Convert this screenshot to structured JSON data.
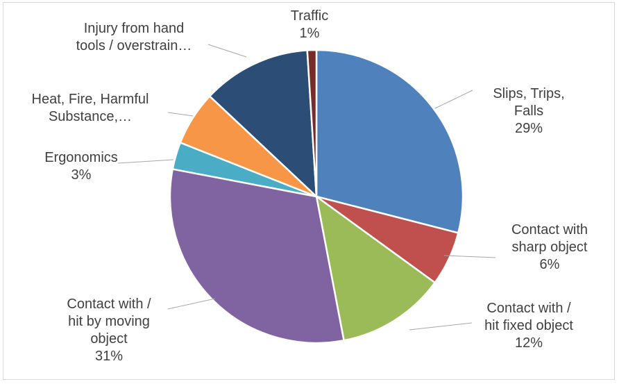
{
  "chart_data": {
    "type": "pie",
    "title": "",
    "slices": [
      {
        "label_lines": [
          "Slips, Trips,",
          "Falls"
        ],
        "percent_label": "29%",
        "value": 29,
        "color": "#4f81bd"
      },
      {
        "label_lines": [
          "Contact with",
          "sharp object"
        ],
        "percent_label": "6%",
        "value": 6,
        "color": "#c0504d"
      },
      {
        "label_lines": [
          "Contact with /",
          "hit fixed object"
        ],
        "percent_label": "12%",
        "value": 12,
        "color": "#9bbb59"
      },
      {
        "label_lines": [
          "Contact with /",
          "hit by moving",
          "object"
        ],
        "percent_label": "31%",
        "value": 31,
        "color": "#8064a2"
      },
      {
        "label_lines": [
          "Ergonomics"
        ],
        "percent_label": "3%",
        "value": 3,
        "color": "#4bacc6"
      },
      {
        "label_lines": [
          "Heat, Fire, Harmful",
          "Substance,…"
        ],
        "percent_label": "",
        "value": 6,
        "color": "#f79646"
      },
      {
        "label_lines": [
          "Injury from hand",
          "tools / overstrain…"
        ],
        "percent_label": "",
        "value": 12,
        "color": "#2c4d75"
      },
      {
        "label_lines": [
          "Traffic"
        ],
        "percent_label": "1%",
        "value": 1,
        "color": "#772c2a"
      }
    ],
    "start_angle": "12 o'clock, clockwise",
    "legend": "none",
    "label_position": "outside with leader lines"
  }
}
